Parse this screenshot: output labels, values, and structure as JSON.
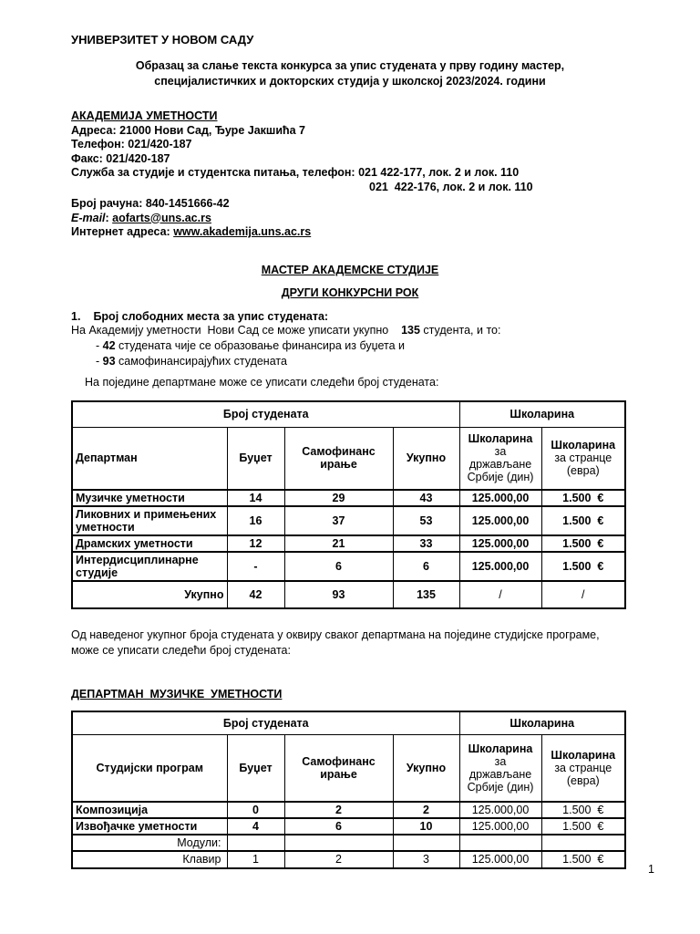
{
  "colors": {
    "text": "#000000",
    "background": "#ffffff",
    "table_border": "#000000"
  },
  "header": {
    "university": "УНИВЕРЗИТЕТ У НОВОМ САДУ",
    "form_title_line1": "Образац за слање текста конкурса за упис студената у прву годину мастер,",
    "form_title_line2": "специјалистичких и докторских студија у школској 2023/2024. години"
  },
  "academy": {
    "name": "АКАДЕМИЈА УМЕТНОСТИ",
    "address": "Адреса: 21000 Нови Сад, Ђуре Јакшића 7",
    "phone": "Телефон: 021/420-187",
    "fax": "Факс: 021/420-187",
    "service_line1": "Служба за студије и студентска питања, телефон: 021 422-177, лок. 2 и лок. 110",
    "service_line2": "021  422-176, лок. 2 и лок. 110",
    "account": "Број рачуна: 840-1451666-42",
    "email_label": "E-mail",
    "email_sep": ": ",
    "email": "aofarts@uns.ac.rs",
    "web_label": "Интернет адреса: ",
    "web": "www.akademija.uns.ac.rs"
  },
  "sections": {
    "master_title": "МАСТЕР АКАДЕМСКЕ СТУДИЈЕ",
    "round_title": "ДРУГИ КОНКУРСНИ РОК"
  },
  "enrollment": {
    "item_number": "1.",
    "item_title": "Број слободних места за упис студената:",
    "intro_pre": "На Академију уметности  Нови Сад се може уписати укупно    ",
    "intro_num": "135",
    "intro_post": " студента, и то:",
    "b1_pre": "- ",
    "b1_num": "42",
    "b1_post": " студената чије се образовање финансира из буџета и",
    "b2_pre": "- ",
    "b2_num": "93",
    "b2_post": " самофинансирајућих студената",
    "note": "На поједине департмане може се уписати следећи број студената:"
  },
  "table1": {
    "group": {
      "students": "Број студената",
      "tuition": "Школарина"
    },
    "headers": {
      "col1": "Департман",
      "budget": "Буџет",
      "selffin_l1": "Самофинанс",
      "selffin_l2": "ирање",
      "total": "Укупно",
      "rsd_l1": "Школарина",
      "rsd_l2": "за",
      "rsd_l3": "држављане",
      "rsd_l4": "Србије (дин)",
      "eur_l1": "Школарина",
      "eur_l2": "за странце",
      "eur_l3": "(евра)"
    },
    "rows": [
      {
        "name": "Музичке уметности",
        "budget": "14",
        "selffin": "29",
        "total": "43",
        "rsd": "125.000,00",
        "eur": "1.500  €"
      },
      {
        "name": "Ликовних и примењених уметности",
        "budget": "16",
        "selffin": "37",
        "total": "53",
        "rsd": "125.000,00",
        "eur": "1.500  €"
      },
      {
        "name": "Драмских уметности",
        "budget": "12",
        "selffin": "21",
        "total": "33",
        "rsd": "125.000,00",
        "eur": "1.500  €"
      },
      {
        "name": "Интердисциплинарне студије",
        "budget": "-",
        "selffin": "6",
        "total": "6",
        "rsd": "125.000,00",
        "eur": "1.500  €"
      }
    ],
    "total": {
      "label": "Укупно",
      "budget": "42",
      "selffin": "93",
      "total": "135",
      "rsd": "/",
      "eur": "/"
    }
  },
  "between_note": "Од наведеног укупног броја студената у оквиру сваког департмана на поједине студијске програме, може се уписати следећи број студената:",
  "music_dept": {
    "title": "ДЕПАРТМАН  МУЗИЧКЕ  УМЕТНОСТИ",
    "table": {
      "group": {
        "students": "Број студената",
        "tuition": "Школарина"
      },
      "headers": {
        "col1": "Студијски програм",
        "budget": "Буџет",
        "selffin_l1": "Самофинанс",
        "selffin_l2": "ирање",
        "total": "Укупно",
        "rsd_l1": "Школарина",
        "rsd_l2": "за",
        "rsd_l3": "држављане",
        "rsd_l4": "Србије (дин)",
        "eur_l1": "Школарина",
        "eur_l2": "за странце",
        "eur_l3": "(евра)"
      },
      "rows": [
        {
          "name": "Композиција",
          "budget": "0",
          "selffin": "2",
          "total": "2",
          "rsd": "125.000,00",
          "eur": "1.500  €"
        },
        {
          "name": "Извођачке уметности",
          "budget": "4",
          "selffin": "6",
          "total": "10",
          "rsd": "125.000,00",
          "eur": "1.500  €"
        },
        {
          "name": "Модули:",
          "budget": "",
          "selffin": "",
          "total": "",
          "rsd": "",
          "eur": ""
        },
        {
          "name": "Клавир",
          "budget": "1",
          "selffin": "2",
          "total": "3",
          "rsd": "125.000,00",
          "eur": "1.500  €"
        }
      ]
    }
  },
  "page_number": "1"
}
